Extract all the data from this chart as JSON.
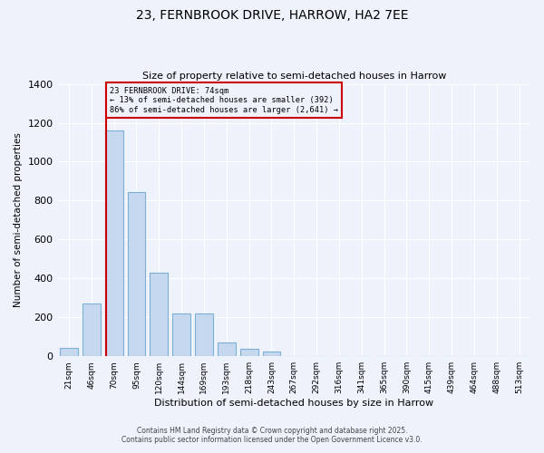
{
  "title_line1": "23, FERNBROOK DRIVE, HARROW, HA2 7EE",
  "title_line2": "Size of property relative to semi-detached houses in Harrow",
  "xlabel": "Distribution of semi-detached houses by size in Harrow",
  "ylabel": "Number of semi-detached properties",
  "bar_labels": [
    "21sqm",
    "46sqm",
    "70sqm",
    "95sqm",
    "120sqm",
    "144sqm",
    "169sqm",
    "193sqm",
    "218sqm",
    "243sqm",
    "267sqm",
    "292sqm",
    "316sqm",
    "341sqm",
    "365sqm",
    "390sqm",
    "415sqm",
    "439sqm",
    "464sqm",
    "488sqm",
    "513sqm"
  ],
  "bar_values": [
    45,
    270,
    1160,
    845,
    430,
    220,
    220,
    70,
    40,
    25,
    0,
    0,
    0,
    0,
    0,
    0,
    0,
    0,
    0,
    0,
    0
  ],
  "bar_color": "#c5d8f0",
  "bar_edge_color": "#7bafd4",
  "vline_color": "#cc0000",
  "ylim": [
    0,
    1400
  ],
  "yticks": [
    0,
    200,
    400,
    600,
    800,
    1000,
    1200,
    1400
  ],
  "footer_line1": "Contains HM Land Registry data © Crown copyright and database right 2025.",
  "footer_line2": "Contains public sector information licensed under the Open Government Licence v3.0.",
  "background_color": "#eef2fb"
}
